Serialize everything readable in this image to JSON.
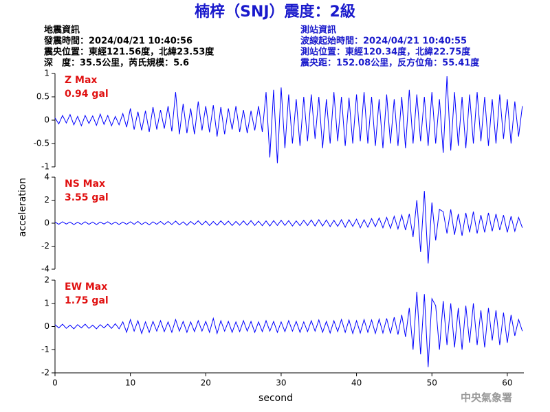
{
  "title": "楠梓（SNJ）震度：2級",
  "event_info": [
    "地震資訊",
    "發震時間：2024/04/21 10:40:56",
    "震央位置：東經121.56度，北緯23.53度",
    "深　度：35.5公里，芮氏規模：5.6"
  ],
  "station_info": [
    "測站資訊",
    "波線起始時間：2024/04/21 10:40:55",
    "測站位置：東經120.34度，北緯22.75度",
    "震央距：152.08公里，反方位角：55.41度"
  ],
  "y_label": "acceleration",
  "x_label": "second",
  "footer": "中央氣象署",
  "chart_data": [
    {
      "type": "line",
      "title": "Z Max",
      "subtitle": "0.94 gal",
      "color": "#0000ff",
      "xlim": [
        0,
        62.2
      ],
      "ylim": [
        -1,
        1
      ],
      "yticks": [
        -1,
        -0.5,
        0,
        0.5,
        1
      ],
      "x": [
        0,
        0.5,
        1,
        1.5,
        2,
        2.5,
        3,
        3.5,
        4,
        4.5,
        5,
        5.5,
        6,
        6.5,
        7,
        7.5,
        8,
        8.5,
        9,
        9.5,
        10,
        10.5,
        11,
        11.5,
        12,
        12.5,
        13,
        13.5,
        14,
        14.5,
        15,
        15.5,
        16,
        16.5,
        17,
        17.5,
        18,
        18.5,
        19,
        19.5,
        20,
        20.5,
        21,
        21.5,
        22,
        22.5,
        23,
        23.5,
        24,
        24.5,
        25,
        25.5,
        26,
        26.5,
        27,
        27.5,
        28,
        28.5,
        29,
        29.5,
        30,
        30.5,
        31,
        31.5,
        32,
        32.5,
        33,
        33.5,
        34,
        34.5,
        35,
        35.5,
        36,
        36.5,
        37,
        37.5,
        38,
        38.5,
        39,
        39.5,
        40,
        40.5,
        41,
        41.5,
        42,
        42.5,
        43,
        43.5,
        44,
        44.5,
        45,
        45.5,
        46,
        46.5,
        47,
        47.5,
        48,
        48.5,
        49,
        49.5,
        50,
        50.5,
        51,
        51.5,
        52,
        52.5,
        53,
        53.5,
        54,
        54.5,
        55,
        55.5,
        56,
        56.5,
        57,
        57.5,
        58,
        58.5,
        59,
        59.5,
        60,
        60.5,
        61,
        61.5,
        62
      ],
      "values": [
        0.05,
        -0.08,
        0.1,
        -0.06,
        0.12,
        -0.1,
        0.08,
        -0.12,
        0.1,
        -0.07,
        0.09,
        -0.11,
        0.13,
        -0.09,
        0.1,
        -0.12,
        0.08,
        -0.1,
        0.14,
        -0.15,
        0.25,
        -0.2,
        0.18,
        -0.22,
        0.2,
        -0.25,
        0.28,
        -0.2,
        0.22,
        -0.18,
        0.3,
        -0.24,
        0.6,
        -0.3,
        0.35,
        -0.28,
        0.25,
        -0.3,
        0.4,
        -0.22,
        0.3,
        -0.26,
        0.32,
        -0.35,
        0.28,
        -0.3,
        0.25,
        -0.2,
        0.3,
        -0.25,
        0.22,
        -0.28,
        0.2,
        -0.22,
        0.3,
        -0.25,
        0.6,
        -0.8,
        0.65,
        -0.92,
        0.7,
        -0.6,
        0.55,
        -0.5,
        0.45,
        -0.55,
        0.5,
        -0.45,
        0.55,
        -0.4,
        0.5,
        -0.6,
        0.45,
        -0.5,
        0.6,
        -0.45,
        0.5,
        -0.55,
        0.48,
        -0.5,
        0.55,
        -0.45,
        0.6,
        -0.5,
        0.5,
        -0.55,
        0.45,
        -0.6,
        0.55,
        -0.5,
        0.45,
        -0.55,
        0.5,
        -0.6,
        0.65,
        -0.5,
        0.55,
        -0.45,
        0.5,
        -0.55,
        0.6,
        -0.5,
        0.45,
        -0.7,
        0.94,
        -0.65,
        0.6,
        -0.55,
        0.5,
        -0.6,
        0.55,
        -0.5,
        0.6,
        -0.45,
        0.5,
        -0.55,
        0.45,
        -0.5,
        0.55,
        -0.4,
        0.45,
        -0.5,
        0.4,
        -0.35,
        0.3
      ]
    },
    {
      "type": "line",
      "title": "NS Max",
      "subtitle": "3.55 gal",
      "color": "#0000ff",
      "xlim": [
        0,
        62.2
      ],
      "ylim": [
        -4,
        4
      ],
      "yticks": [
        -4,
        -2,
        0,
        2,
        4
      ],
      "x": [
        0,
        0.5,
        1,
        1.5,
        2,
        2.5,
        3,
        3.5,
        4,
        4.5,
        5,
        5.5,
        6,
        6.5,
        7,
        7.5,
        8,
        8.5,
        9,
        9.5,
        10,
        10.5,
        11,
        11.5,
        12,
        12.5,
        13,
        13.5,
        14,
        14.5,
        15,
        15.5,
        16,
        16.5,
        17,
        17.5,
        18,
        18.5,
        19,
        19.5,
        20,
        20.5,
        21,
        21.5,
        22,
        22.5,
        23,
        23.5,
        24,
        24.5,
        25,
        25.5,
        26,
        26.5,
        27,
        27.5,
        28,
        28.5,
        29,
        29.5,
        30,
        30.5,
        31,
        31.5,
        32,
        32.5,
        33,
        33.5,
        34,
        34.5,
        35,
        35.5,
        36,
        36.5,
        37,
        37.5,
        38,
        38.5,
        39,
        39.5,
        40,
        40.5,
        41,
        41.5,
        42,
        42.5,
        43,
        43.5,
        44,
        44.5,
        45,
        45.5,
        46,
        46.5,
        47,
        47.5,
        48,
        48.5,
        49,
        49.5,
        50,
        50.5,
        51,
        51.5,
        52,
        52.5,
        53,
        53.5,
        54,
        54.5,
        55,
        55.5,
        56,
        56.5,
        57,
        57.5,
        58,
        58.5,
        59,
        59.5,
        60,
        60.5,
        61,
        61.5,
        62
      ],
      "values": [
        0.1,
        -0.1,
        0.12,
        -0.08,
        0.1,
        -0.12,
        0.08,
        -0.1,
        0.12,
        -0.1,
        0.1,
        -0.12,
        0.1,
        -0.08,
        0.12,
        -0.1,
        0.1,
        -0.12,
        0.1,
        -0.1,
        0.12,
        -0.1,
        0.15,
        -0.12,
        0.1,
        -0.15,
        0.12,
        -0.1,
        0.15,
        -0.12,
        0.15,
        -0.12,
        0.18,
        -0.15,
        0.12,
        -0.18,
        0.15,
        -0.12,
        0.2,
        -0.15,
        0.18,
        -0.2,
        0.15,
        -0.18,
        0.2,
        -0.15,
        0.18,
        -0.2,
        0.15,
        -0.18,
        0.2,
        -0.18,
        0.22,
        -0.2,
        0.18,
        -0.22,
        0.2,
        -0.25,
        0.22,
        -0.2,
        0.25,
        -0.2,
        0.22,
        -0.25,
        0.2,
        -0.22,
        0.25,
        -0.2,
        0.28,
        -0.25,
        0.3,
        -0.25,
        0.28,
        -0.3,
        0.25,
        -0.28,
        0.3,
        -0.35,
        0.3,
        -0.28,
        0.35,
        -0.4,
        0.3,
        -0.35,
        0.4,
        -0.3,
        0.45,
        -0.4,
        0.5,
        -0.45,
        0.6,
        -0.5,
        0.7,
        -0.6,
        0.8,
        -1.2,
        2.0,
        -2.5,
        2.8,
        -3.5,
        1.8,
        -1.5,
        1.2,
        1.0,
        -0.9,
        1.2,
        -1.0,
        0.8,
        -1.1,
        0.9,
        -0.8,
        1.0,
        -0.9,
        0.7,
        -0.8,
        0.9,
        -0.7,
        0.8,
        -0.6,
        0.7,
        -0.8,
        0.6,
        -0.7,
        0.5,
        -0.4
      ]
    },
    {
      "type": "line",
      "title": "EW Max",
      "subtitle": "1.75 gal",
      "color": "#0000ff",
      "xlim": [
        0,
        62.2
      ],
      "ylim": [
        -2,
        2
      ],
      "yticks": [
        -2,
        -1,
        0,
        1,
        2
      ],
      "xticks": [
        0,
        10,
        20,
        30,
        40,
        50,
        60
      ],
      "x": [
        0,
        0.5,
        1,
        1.5,
        2,
        2.5,
        3,
        3.5,
        4,
        4.5,
        5,
        5.5,
        6,
        6.5,
        7,
        7.5,
        8,
        8.5,
        9,
        9.5,
        10,
        10.5,
        11,
        11.5,
        12,
        12.5,
        13,
        13.5,
        14,
        14.5,
        15,
        15.5,
        16,
        16.5,
        17,
        17.5,
        18,
        18.5,
        19,
        19.5,
        20,
        20.5,
        21,
        21.5,
        22,
        22.5,
        23,
        23.5,
        24,
        24.5,
        25,
        25.5,
        26,
        26.5,
        27,
        27.5,
        28,
        28.5,
        29,
        29.5,
        30,
        30.5,
        31,
        31.5,
        32,
        32.5,
        33,
        33.5,
        34,
        34.5,
        35,
        35.5,
        36,
        36.5,
        37,
        37.5,
        38,
        38.5,
        39,
        39.5,
        40,
        40.5,
        41,
        41.5,
        42,
        42.5,
        43,
        43.5,
        44,
        44.5,
        45,
        45.5,
        46,
        46.5,
        47,
        47.5,
        48,
        48.5,
        49,
        49.5,
        50,
        50.5,
        51,
        51.5,
        52,
        52.5,
        53,
        53.5,
        54,
        54.5,
        55,
        55.5,
        56,
        56.5,
        57,
        57.5,
        58,
        58.5,
        59,
        59.5,
        60,
        60.5,
        61,
        61.5,
        62
      ],
      "values": [
        0.08,
        -0.06,
        0.1,
        -0.08,
        0.06,
        -0.1,
        0.08,
        -0.06,
        0.1,
        -0.08,
        0.06,
        -0.1,
        0.08,
        -0.06,
        0.1,
        -0.08,
        0.12,
        -0.1,
        0.2,
        -0.25,
        0.3,
        -0.2,
        0.25,
        -0.3,
        0.2,
        -0.25,
        0.22,
        -0.2,
        0.25,
        -0.22,
        0.2,
        -0.25,
        0.3,
        -0.2,
        0.22,
        -0.25,
        0.2,
        -0.22,
        0.25,
        -0.2,
        0.22,
        -0.25,
        0.35,
        -0.3,
        0.25,
        -0.2,
        0.22,
        -0.25,
        0.2,
        -0.22,
        0.25,
        -0.2,
        0.22,
        -0.25,
        0.2,
        -0.22,
        0.25,
        -0.2,
        0.22,
        -0.25,
        0.2,
        -0.22,
        0.25,
        -0.2,
        0.22,
        -0.25,
        0.2,
        -0.22,
        0.25,
        -0.2,
        0.28,
        -0.25,
        0.22,
        -0.28,
        0.25,
        -0.22,
        0.3,
        -0.25,
        0.28,
        -0.3,
        0.25,
        -0.28,
        0.3,
        -0.25,
        0.28,
        -0.3,
        0.32,
        -0.28,
        0.35,
        -0.3,
        0.4,
        -0.35,
        0.5,
        -0.45,
        0.8,
        -1.0,
        1.5,
        -1.2,
        1.4,
        -1.75,
        1.2,
        0.9,
        -1.0,
        1.1,
        -0.8,
        1.0,
        -0.9,
        0.8,
        -1.0,
        0.9,
        -0.7,
        1.0,
        -0.8,
        0.7,
        -0.9,
        0.8,
        -0.6,
        0.7,
        -0.8,
        0.6,
        -0.7,
        0.5,
        -0.4,
        0.3,
        -0.2
      ]
    }
  ]
}
